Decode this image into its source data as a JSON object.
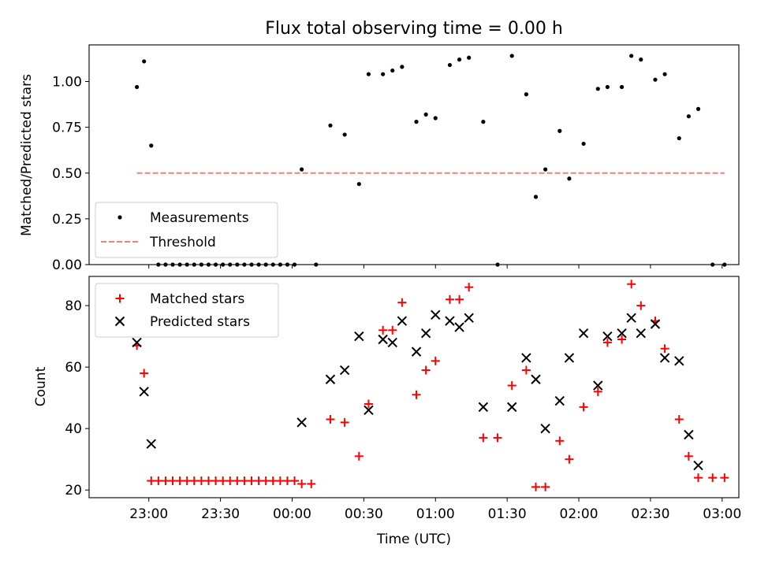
{
  "chart_data": [
    {
      "type": "scatter",
      "title": "Flux total observing time = 0.00 h",
      "xlabel": "",
      "ylabel": "Matched/Predicted stars",
      "xlim": [
        "22:35",
        "03:07"
      ],
      "ylim": [
        0,
        1.2
      ],
      "yticks": [
        "0.00",
        "0.25",
        "0.50",
        "0.75",
        "1.00"
      ],
      "legend": "lower-left",
      "grid": false,
      "series": [
        {
          "name": "Measurements",
          "marker": "dot",
          "color": "#000000",
          "points": [
            [
              "22:55",
              0.97
            ],
            [
              "22:58",
              1.11
            ],
            [
              "23:01",
              0.65
            ],
            [
              "23:04",
              0
            ],
            [
              "23:07",
              0
            ],
            [
              "23:10",
              0
            ],
            [
              "23:13",
              0
            ],
            [
              "23:16",
              0
            ],
            [
              "23:19",
              0
            ],
            [
              "23:22",
              0
            ],
            [
              "23:25",
              0
            ],
            [
              "23:28",
              0
            ],
            [
              "23:31",
              0
            ],
            [
              "23:34",
              0
            ],
            [
              "23:37",
              0
            ],
            [
              "23:40",
              0
            ],
            [
              "23:43",
              0
            ],
            [
              "23:46",
              0
            ],
            [
              "23:49",
              0
            ],
            [
              "23:52",
              0
            ],
            [
              "23:55",
              0
            ],
            [
              "23:58",
              0
            ],
            [
              "00:01",
              0
            ],
            [
              "00:04",
              0.52
            ],
            [
              "00:10",
              0
            ],
            [
              "00:16",
              0.76
            ],
            [
              "00:22",
              0.71
            ],
            [
              "00:28",
              0.44
            ],
            [
              "00:32",
              1.04
            ],
            [
              "00:38",
              1.04
            ],
            [
              "00:42",
              1.06
            ],
            [
              "00:46",
              1.08
            ],
            [
              "00:52",
              0.78
            ],
            [
              "00:56",
              0.82
            ],
            [
              "01:00",
              0.8
            ],
            [
              "01:06",
              1.09
            ],
            [
              "01:10",
              1.12
            ],
            [
              "01:14",
              1.13
            ],
            [
              "01:20",
              0.78
            ],
            [
              "01:26",
              0
            ],
            [
              "01:32",
              1.14
            ],
            [
              "01:38",
              0.93
            ],
            [
              "01:42",
              0.37
            ],
            [
              "01:46",
              0.52
            ],
            [
              "01:52",
              0.73
            ],
            [
              "01:56",
              0.47
            ],
            [
              "02:02",
              0.66
            ],
            [
              "02:08",
              0.96
            ],
            [
              "02:12",
              0.97
            ],
            [
              "02:18",
              0.97
            ],
            [
              "02:22",
              1.14
            ],
            [
              "02:26",
              1.12
            ],
            [
              "02:32",
              1.01
            ],
            [
              "02:36",
              1.04
            ],
            [
              "02:42",
              0.69
            ],
            [
              "02:46",
              0.81
            ],
            [
              "02:50",
              0.85
            ],
            [
              "02:56",
              0
            ],
            [
              "03:01",
              0
            ]
          ]
        },
        {
          "name": "Threshold",
          "type": "line",
          "dash": true,
          "color": "#f08080",
          "points": [
            [
              "22:55",
              0.5
            ],
            [
              "03:01",
              0.5
            ]
          ]
        }
      ]
    },
    {
      "type": "scatter",
      "title": "",
      "xlabel": "Time (UTC)",
      "ylabel": "Count",
      "xlim": [
        "22:35",
        "03:07"
      ],
      "ylim": [
        17.5,
        89.5
      ],
      "yticks": [
        "20",
        "40",
        "60",
        "80"
      ],
      "xticks": [
        "23:00",
        "23:30",
        "00:00",
        "00:30",
        "01:00",
        "01:30",
        "02:00",
        "02:30",
        "03:00"
      ],
      "legend": "upper-left",
      "grid": false,
      "series": [
        {
          "name": "Matched stars",
          "marker": "plus",
          "color": "#ff0000",
          "points": [
            [
              "22:55",
              67
            ],
            [
              "22:58",
              58
            ],
            [
              "23:01",
              23
            ],
            [
              "23:04",
              23
            ],
            [
              "23:07",
              23
            ],
            [
              "23:10",
              23
            ],
            [
              "23:13",
              23
            ],
            [
              "23:16",
              23
            ],
            [
              "23:19",
              23
            ],
            [
              "23:22",
              23
            ],
            [
              "23:25",
              23
            ],
            [
              "23:28",
              23
            ],
            [
              "23:31",
              23
            ],
            [
              "23:34",
              23
            ],
            [
              "23:37",
              23
            ],
            [
              "23:40",
              23
            ],
            [
              "23:43",
              23
            ],
            [
              "23:46",
              23
            ],
            [
              "23:49",
              23
            ],
            [
              "23:52",
              23
            ],
            [
              "23:55",
              23
            ],
            [
              "23:58",
              23
            ],
            [
              "00:01",
              23
            ],
            [
              "00:04",
              22
            ],
            [
              "00:08",
              22
            ],
            [
              "00:16",
              43
            ],
            [
              "00:22",
              42
            ],
            [
              "00:28",
              31
            ],
            [
              "00:32",
              48
            ],
            [
              "00:38",
              72
            ],
            [
              "00:42",
              72
            ],
            [
              "00:46",
              81
            ],
            [
              "00:52",
              51
            ],
            [
              "00:56",
              59
            ],
            [
              "01:00",
              62
            ],
            [
              "01:06",
              82
            ],
            [
              "01:10",
              82
            ],
            [
              "01:14",
              86
            ],
            [
              "01:20",
              37
            ],
            [
              "01:26",
              37
            ],
            [
              "01:32",
              54
            ],
            [
              "01:38",
              59
            ],
            [
              "01:42",
              21
            ],
            [
              "01:46",
              21
            ],
            [
              "01:52",
              36
            ],
            [
              "01:56",
              30
            ],
            [
              "02:02",
              47
            ],
            [
              "02:08",
              52
            ],
            [
              "02:12",
              68
            ],
            [
              "02:18",
              69
            ],
            [
              "02:22",
              87
            ],
            [
              "02:26",
              80
            ],
            [
              "02:32",
              75
            ],
            [
              "02:36",
              66
            ],
            [
              "02:42",
              43
            ],
            [
              "02:46",
              31
            ],
            [
              "02:50",
              24
            ],
            [
              "02:56",
              24
            ],
            [
              "03:01",
              24
            ]
          ]
        },
        {
          "name": "Predicted stars",
          "marker": "x",
          "color": "#000000",
          "points": [
            [
              "22:55",
              68
            ],
            [
              "22:58",
              52
            ],
            [
              "23:01",
              35
            ],
            [
              "00:04",
              42
            ],
            [
              "00:16",
              56
            ],
            [
              "00:22",
              59
            ],
            [
              "00:28",
              70
            ],
            [
              "00:32",
              46
            ],
            [
              "00:38",
              69
            ],
            [
              "00:42",
              68
            ],
            [
              "00:46",
              75
            ],
            [
              "00:52",
              65
            ],
            [
              "00:56",
              71
            ],
            [
              "01:00",
              77
            ],
            [
              "01:06",
              75
            ],
            [
              "01:10",
              73
            ],
            [
              "01:14",
              76
            ],
            [
              "01:20",
              47
            ],
            [
              "01:32",
              47
            ],
            [
              "01:38",
              63
            ],
            [
              "01:42",
              56
            ],
            [
              "01:46",
              40
            ],
            [
              "01:52",
              49
            ],
            [
              "01:56",
              63
            ],
            [
              "02:02",
              71
            ],
            [
              "02:08",
              54
            ],
            [
              "02:12",
              70
            ],
            [
              "02:18",
              71
            ],
            [
              "02:22",
              76
            ],
            [
              "02:26",
              71
            ],
            [
              "02:32",
              74
            ],
            [
              "02:36",
              63
            ],
            [
              "02:42",
              62
            ],
            [
              "02:46",
              38
            ],
            [
              "02:50",
              28
            ]
          ]
        }
      ]
    }
  ]
}
